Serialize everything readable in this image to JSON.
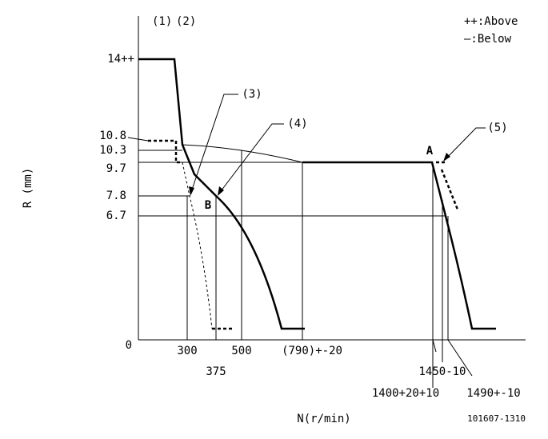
{
  "header": {
    "labels": [
      "(1)",
      "(2)"
    ]
  },
  "legend": {
    "above": "++:Above",
    "below": "—:Below"
  },
  "y_axis": {
    "title": "R (mm)",
    "labels": [
      "14++",
      "10.8",
      "10.3",
      "9.7",
      "7.8",
      "6.7",
      "0"
    ]
  },
  "x_axis": {
    "title": "N(r/min)",
    "labels": [
      "300",
      "500",
      "(790)+-20",
      "375",
      "1450-10",
      "1400+20+10",
      "1490+-10"
    ]
  },
  "callouts": [
    "(3)",
    "(4)",
    "(5)"
  ],
  "points": [
    "A",
    "B"
  ],
  "code": "101607-1310"
}
